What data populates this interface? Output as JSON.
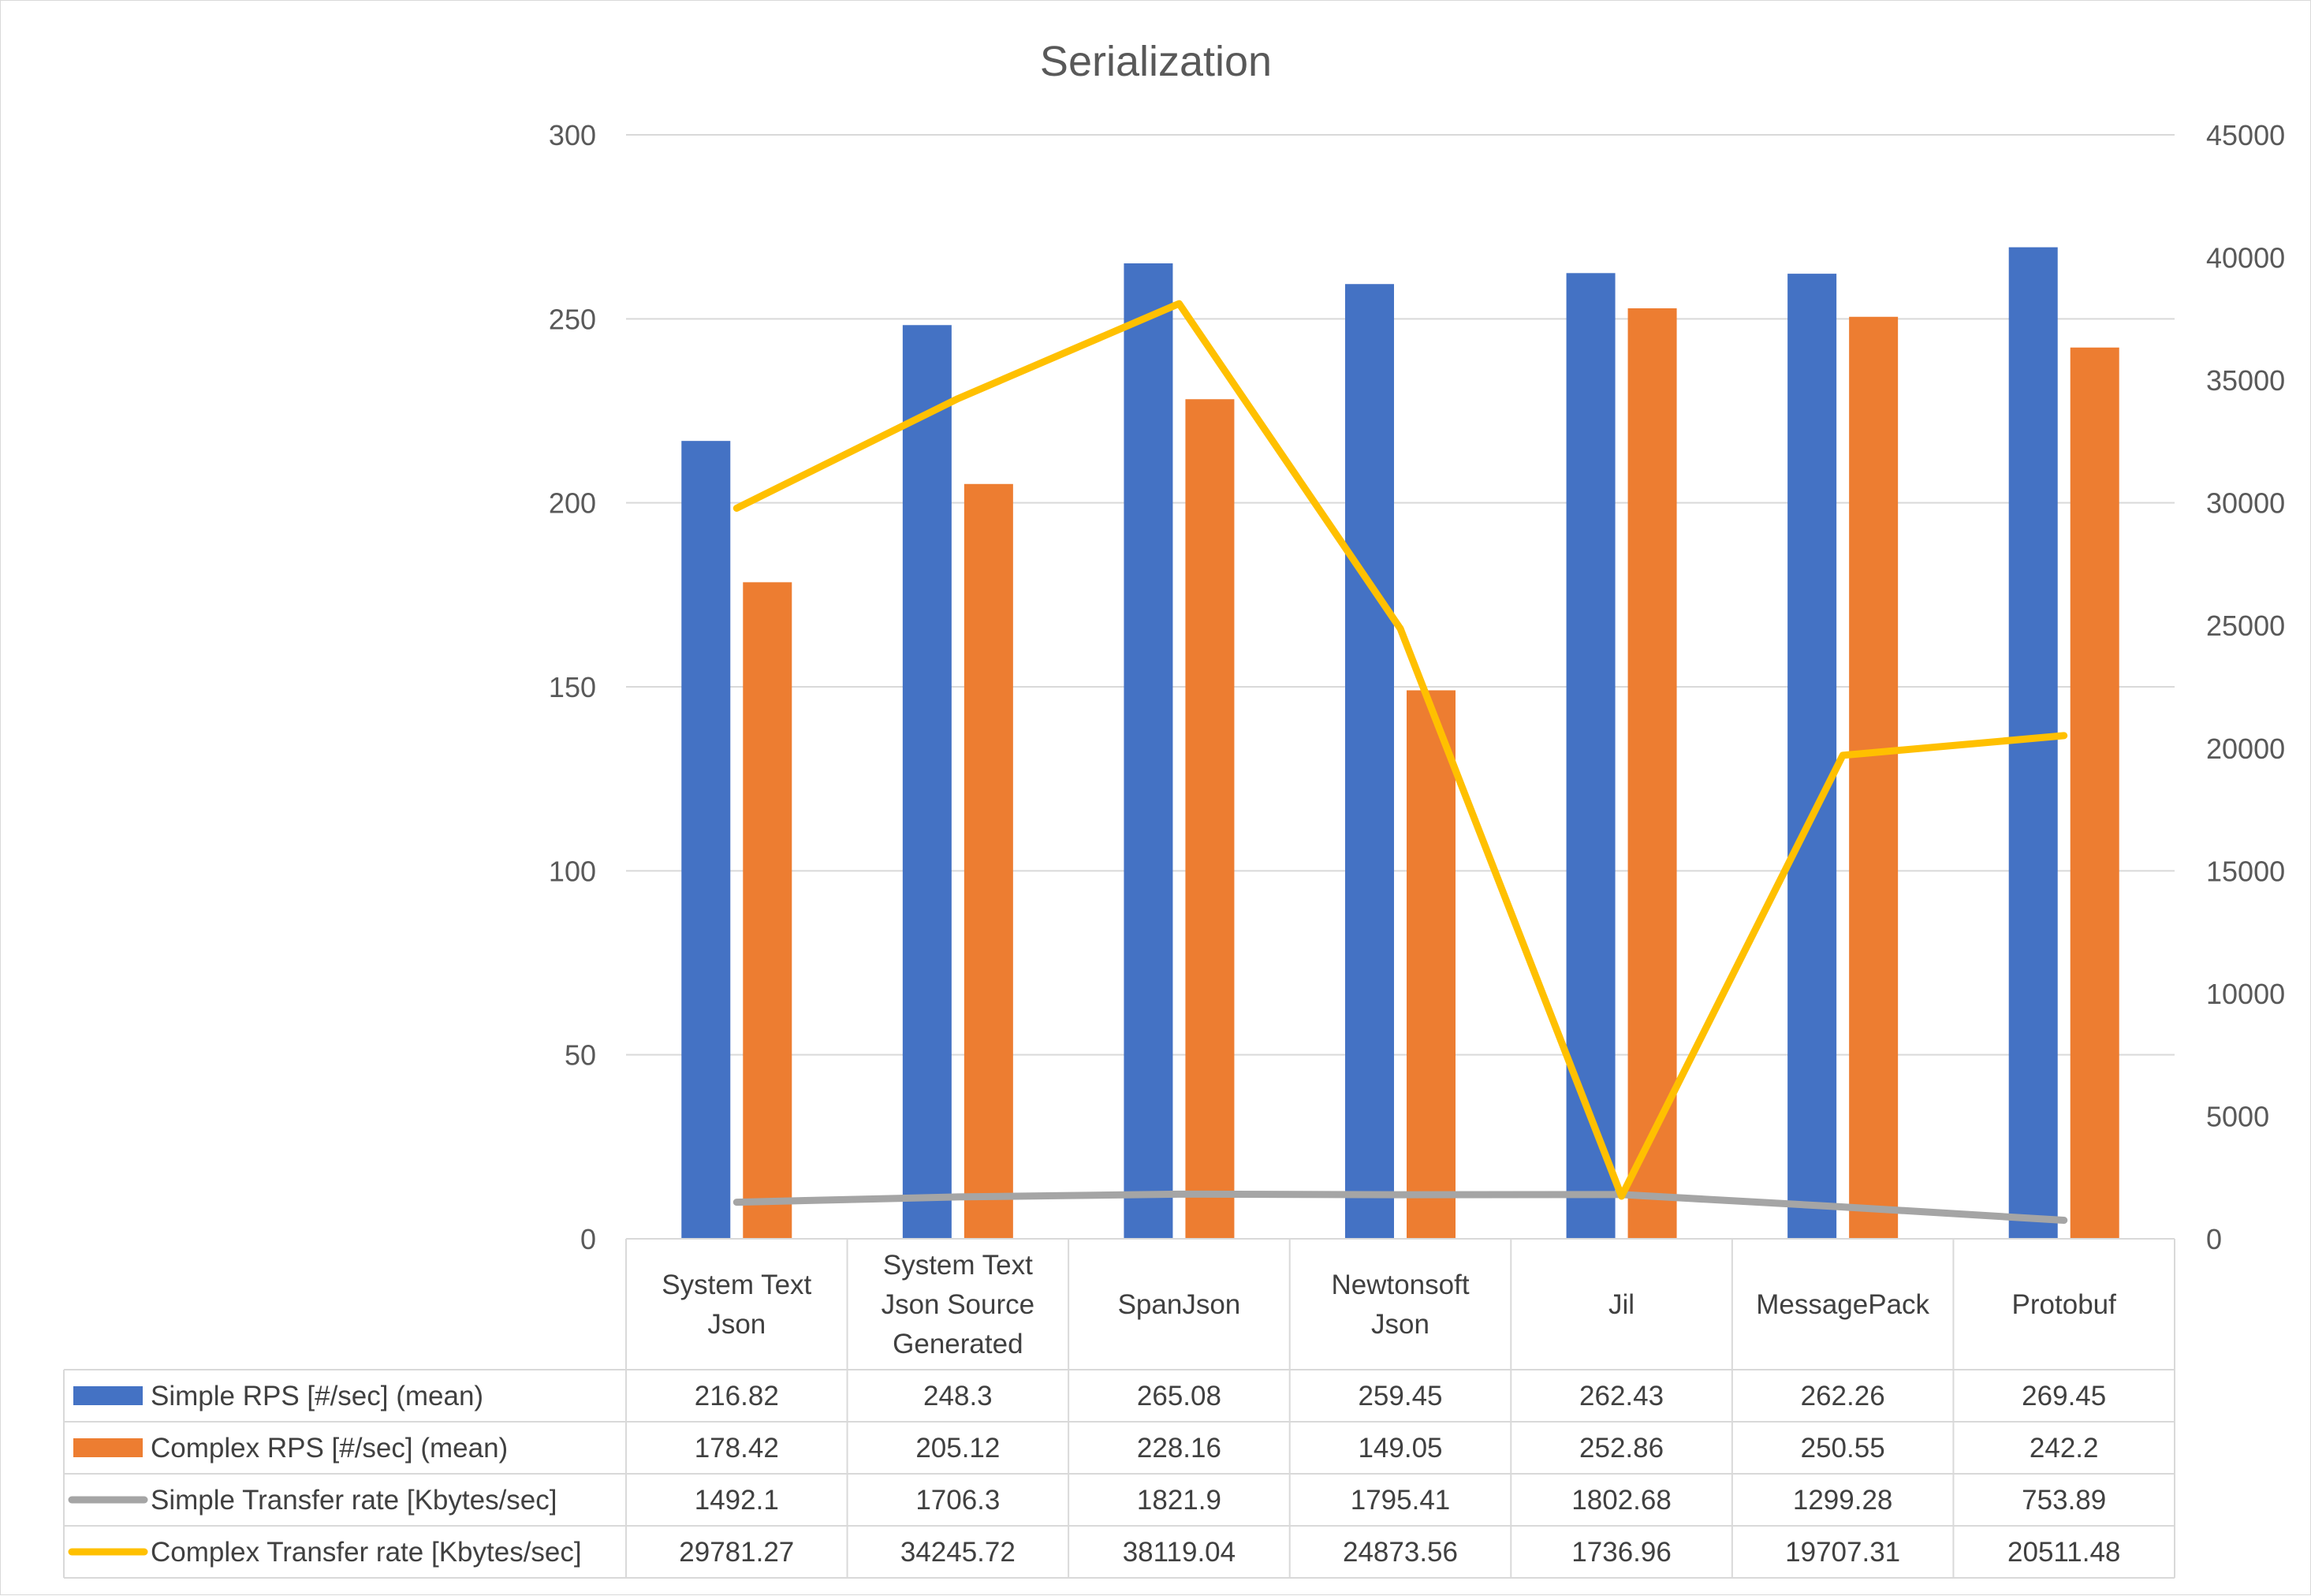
{
  "chart_data": {
    "type": "bar",
    "title": "Serialization",
    "categories": [
      [
        "System Text",
        "Json"
      ],
      [
        "System Text",
        "Json Source",
        "Generated"
      ],
      [
        "SpanJson"
      ],
      [
        "Newtonsoft",
        "Json"
      ],
      [
        "Jil"
      ],
      [
        "MessagePack"
      ],
      [
        "Protobuf"
      ]
    ],
    "primary_axis": {
      "ylim": [
        0,
        300
      ],
      "ticks": [
        "0",
        "50",
        "100",
        "150",
        "200",
        "250",
        "300"
      ]
    },
    "secondary_axis": {
      "ylim": [
        0,
        45000
      ],
      "ticks": [
        "0",
        "5000",
        "10000",
        "15000",
        "20000",
        "25000",
        "30000",
        "35000",
        "40000",
        "45000"
      ]
    },
    "grid": true,
    "legend": "data-table",
    "series": [
      {
        "name": "Simple RPS [#/sec] (mean)",
        "kind": "bar",
        "axis": "primary",
        "color": "#4472C4",
        "values": [
          216.82,
          248.3,
          265.08,
          259.45,
          262.43,
          262.26,
          269.45
        ],
        "labels": [
          "216.82",
          "248.3",
          "265.08",
          "259.45",
          "262.43",
          "262.26",
          "269.45"
        ]
      },
      {
        "name": "Complex RPS [#/sec] (mean)",
        "kind": "bar",
        "axis": "primary",
        "color": "#ED7D31",
        "values": [
          178.42,
          205.12,
          228.16,
          149.05,
          252.86,
          250.55,
          242.2
        ],
        "labels": [
          "178.42",
          "205.12",
          "228.16",
          "149.05",
          "252.86",
          "250.55",
          "242.2"
        ]
      },
      {
        "name": "Simple Transfer rate [Kbytes/sec]",
        "kind": "line",
        "axis": "secondary",
        "color": "#A5A5A5",
        "values": [
          1492.1,
          1706.3,
          1821.9,
          1795.41,
          1802.68,
          1299.28,
          753.89
        ],
        "labels": [
          "1492.1",
          "1706.3",
          "1821.9",
          "1795.41",
          "1802.68",
          "1299.28",
          "753.89"
        ]
      },
      {
        "name": "Complex Transfer rate [Kbytes/sec]",
        "kind": "line",
        "axis": "secondary",
        "color": "#FFC000",
        "values": [
          29781.27,
          34245.72,
          38119.04,
          24873.56,
          1736.96,
          19707.31,
          20511.48
        ],
        "labels": [
          "29781.27",
          "34245.72",
          "38119.04",
          "24873.56",
          "1736.96",
          "19707.31",
          "20511.48"
        ]
      }
    ]
  }
}
